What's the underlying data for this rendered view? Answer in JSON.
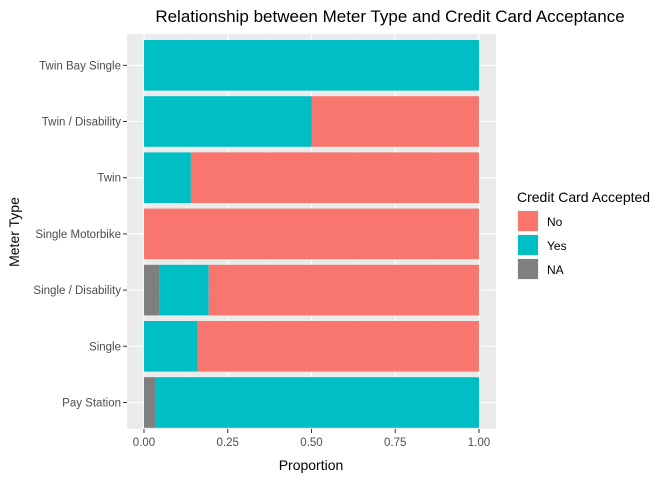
{
  "chart_data": {
    "type": "bar",
    "orientation": "horizontal",
    "stacked": true,
    "title": "Relationship between Meter Type and Credit Card Acceptance",
    "xlabel": "Proportion",
    "ylabel": "Meter Type",
    "xlim": [
      0,
      1
    ],
    "x_ticks": [
      "0.00",
      "0.25",
      "0.50",
      "0.75",
      "1.00"
    ],
    "grid": true,
    "legend": {
      "title": "Credit Card Accepted",
      "position": "right",
      "entries": [
        "No",
        "Yes",
        "NA"
      ]
    },
    "categories": [
      "Twin Bay Single",
      "Twin / Disability",
      "Twin",
      "Single Motorbike",
      "Single / Disability",
      "Single",
      "Pay Station"
    ],
    "series": [
      {
        "name": "NA",
        "color": "#7f7f7f",
        "values": [
          0,
          0,
          0,
          0,
          0.045,
          0,
          0.033
        ]
      },
      {
        "name": "Yes",
        "color": "#00bfc4",
        "values": [
          1.0,
          0.5,
          0.14,
          0,
          0.148,
          0.16,
          0.967
        ]
      },
      {
        "name": "No",
        "color": "#f8766d",
        "values": [
          0,
          0.5,
          0.86,
          1.0,
          0.807,
          0.84,
          0
        ]
      }
    ]
  }
}
